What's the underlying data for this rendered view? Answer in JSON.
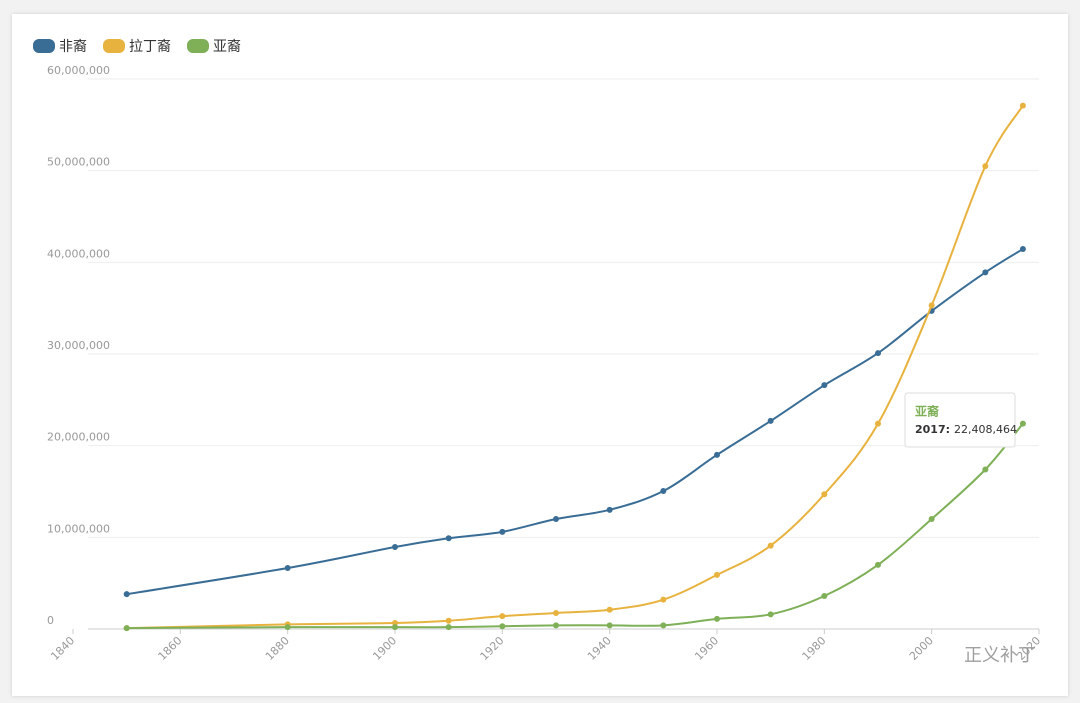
{
  "chart_data": {
    "type": "line",
    "x": [
      1850,
      1880,
      1900,
      1910,
      1920,
      1930,
      1940,
      1950,
      1960,
      1970,
      1980,
      1990,
      2000,
      2010,
      2017
    ],
    "series": [
      {
        "name": "非裔",
        "color": "#3a6d96",
        "values": [
          3800000,
          6650000,
          8950000,
          9900000,
          10600000,
          12000000,
          13000000,
          15050000,
          19000000,
          22700000,
          26600000,
          30100000,
          34700000,
          38900000,
          41450000
        ]
      },
      {
        "name": "拉丁裔",
        "color": "#e8b23e",
        "values": [
          100000,
          500000,
          650000,
          900000,
          1400000,
          1750000,
          2100000,
          3200000,
          5900000,
          9100000,
          14700000,
          22400000,
          35300000,
          50500000,
          57100000
        ]
      },
      {
        "name": "亚裔",
        "color": "#7fb058",
        "values": [
          100000,
          200000,
          200000,
          200000,
          300000,
          400000,
          400000,
          400000,
          1100000,
          1600000,
          3600000,
          7000000,
          12000000,
          17400000,
          22408464
        ]
      }
    ],
    "xlim": [
      1840,
      2020
    ],
    "xticks": [
      1840,
      1860,
      1880,
      1900,
      1920,
      1940,
      1960,
      1980,
      2000,
      2020
    ],
    "ylim": [
      0,
      60000000
    ],
    "yticks": [
      0,
      {
        "value": 10000000,
        "label": "10,000,000"
      },
      {
        "value": 20000000,
        "label": "20,000,000"
      },
      {
        "value": 30000000,
        "label": "30,000,000"
      },
      {
        "value": 40000000,
        "label": "40,000,000"
      },
      {
        "value": 50000000,
        "label": "50,000,000"
      },
      {
        "value": 60000000,
        "label": "60,000,000"
      }
    ],
    "grid": true,
    "legend": "top-left",
    "tooltip": {
      "title": "亚裔",
      "x_label": "2017:",
      "value_label": "22,408,464"
    },
    "watermark": "正义补丁"
  }
}
